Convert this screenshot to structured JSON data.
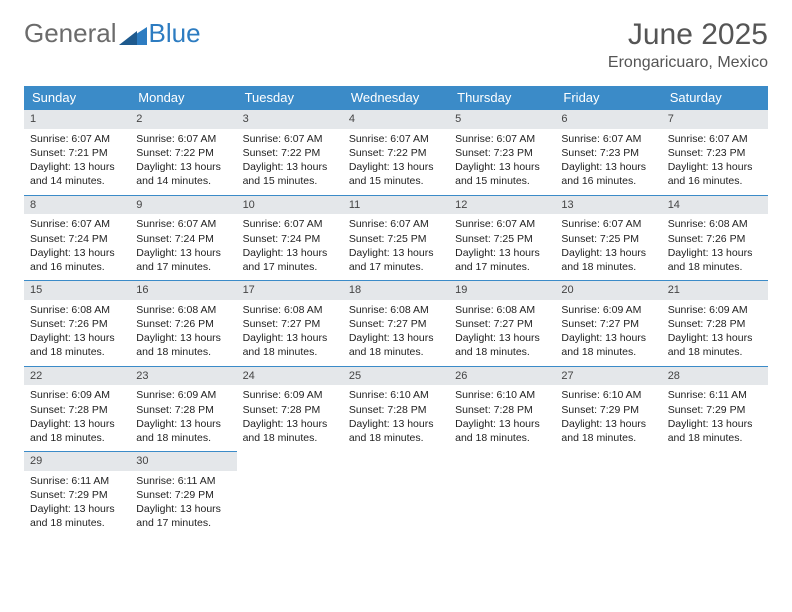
{
  "logo": {
    "word1": "General",
    "word2": "Blue"
  },
  "title": "June 2025",
  "location": "Erongaricuaro, Mexico",
  "colors": {
    "header_bg": "#3b8bc8",
    "header_text": "#ffffff",
    "daynum_bg": "#e4e7ea",
    "daynum_border": "#3b8bc8",
    "logo_gray": "#6b6b6b",
    "logo_blue": "#2d7cc1",
    "text": "#222222"
  },
  "dayNames": [
    "Sunday",
    "Monday",
    "Tuesday",
    "Wednesday",
    "Thursday",
    "Friday",
    "Saturday"
  ],
  "weeks": [
    [
      {
        "n": "1",
        "sr": "6:07 AM",
        "ss": "7:21 PM",
        "dl": "13 hours and 14 minutes."
      },
      {
        "n": "2",
        "sr": "6:07 AM",
        "ss": "7:22 PM",
        "dl": "13 hours and 14 minutes."
      },
      {
        "n": "3",
        "sr": "6:07 AM",
        "ss": "7:22 PM",
        "dl": "13 hours and 15 minutes."
      },
      {
        "n": "4",
        "sr": "6:07 AM",
        "ss": "7:22 PM",
        "dl": "13 hours and 15 minutes."
      },
      {
        "n": "5",
        "sr": "6:07 AM",
        "ss": "7:23 PM",
        "dl": "13 hours and 15 minutes."
      },
      {
        "n": "6",
        "sr": "6:07 AM",
        "ss": "7:23 PM",
        "dl": "13 hours and 16 minutes."
      },
      {
        "n": "7",
        "sr": "6:07 AM",
        "ss": "7:23 PM",
        "dl": "13 hours and 16 minutes."
      }
    ],
    [
      {
        "n": "8",
        "sr": "6:07 AM",
        "ss": "7:24 PM",
        "dl": "13 hours and 16 minutes."
      },
      {
        "n": "9",
        "sr": "6:07 AM",
        "ss": "7:24 PM",
        "dl": "13 hours and 17 minutes."
      },
      {
        "n": "10",
        "sr": "6:07 AM",
        "ss": "7:24 PM",
        "dl": "13 hours and 17 minutes."
      },
      {
        "n": "11",
        "sr": "6:07 AM",
        "ss": "7:25 PM",
        "dl": "13 hours and 17 minutes."
      },
      {
        "n": "12",
        "sr": "6:07 AM",
        "ss": "7:25 PM",
        "dl": "13 hours and 17 minutes."
      },
      {
        "n": "13",
        "sr": "6:07 AM",
        "ss": "7:25 PM",
        "dl": "13 hours and 18 minutes."
      },
      {
        "n": "14",
        "sr": "6:08 AM",
        "ss": "7:26 PM",
        "dl": "13 hours and 18 minutes."
      }
    ],
    [
      {
        "n": "15",
        "sr": "6:08 AM",
        "ss": "7:26 PM",
        "dl": "13 hours and 18 minutes."
      },
      {
        "n": "16",
        "sr": "6:08 AM",
        "ss": "7:26 PM",
        "dl": "13 hours and 18 minutes."
      },
      {
        "n": "17",
        "sr": "6:08 AM",
        "ss": "7:27 PM",
        "dl": "13 hours and 18 minutes."
      },
      {
        "n": "18",
        "sr": "6:08 AM",
        "ss": "7:27 PM",
        "dl": "13 hours and 18 minutes."
      },
      {
        "n": "19",
        "sr": "6:08 AM",
        "ss": "7:27 PM",
        "dl": "13 hours and 18 minutes."
      },
      {
        "n": "20",
        "sr": "6:09 AM",
        "ss": "7:27 PM",
        "dl": "13 hours and 18 minutes."
      },
      {
        "n": "21",
        "sr": "6:09 AM",
        "ss": "7:28 PM",
        "dl": "13 hours and 18 minutes."
      }
    ],
    [
      {
        "n": "22",
        "sr": "6:09 AM",
        "ss": "7:28 PM",
        "dl": "13 hours and 18 minutes."
      },
      {
        "n": "23",
        "sr": "6:09 AM",
        "ss": "7:28 PM",
        "dl": "13 hours and 18 minutes."
      },
      {
        "n": "24",
        "sr": "6:09 AM",
        "ss": "7:28 PM",
        "dl": "13 hours and 18 minutes."
      },
      {
        "n": "25",
        "sr": "6:10 AM",
        "ss": "7:28 PM",
        "dl": "13 hours and 18 minutes."
      },
      {
        "n": "26",
        "sr": "6:10 AM",
        "ss": "7:28 PM",
        "dl": "13 hours and 18 minutes."
      },
      {
        "n": "27",
        "sr": "6:10 AM",
        "ss": "7:29 PM",
        "dl": "13 hours and 18 minutes."
      },
      {
        "n": "28",
        "sr": "6:11 AM",
        "ss": "7:29 PM",
        "dl": "13 hours and 18 minutes."
      }
    ],
    [
      {
        "n": "29",
        "sr": "6:11 AM",
        "ss": "7:29 PM",
        "dl": "13 hours and 18 minutes."
      },
      {
        "n": "30",
        "sr": "6:11 AM",
        "ss": "7:29 PM",
        "dl": "13 hours and 17 minutes."
      },
      null,
      null,
      null,
      null,
      null
    ]
  ],
  "labels": {
    "sunrise": "Sunrise:",
    "sunset": "Sunset:",
    "daylight": "Daylight:"
  }
}
